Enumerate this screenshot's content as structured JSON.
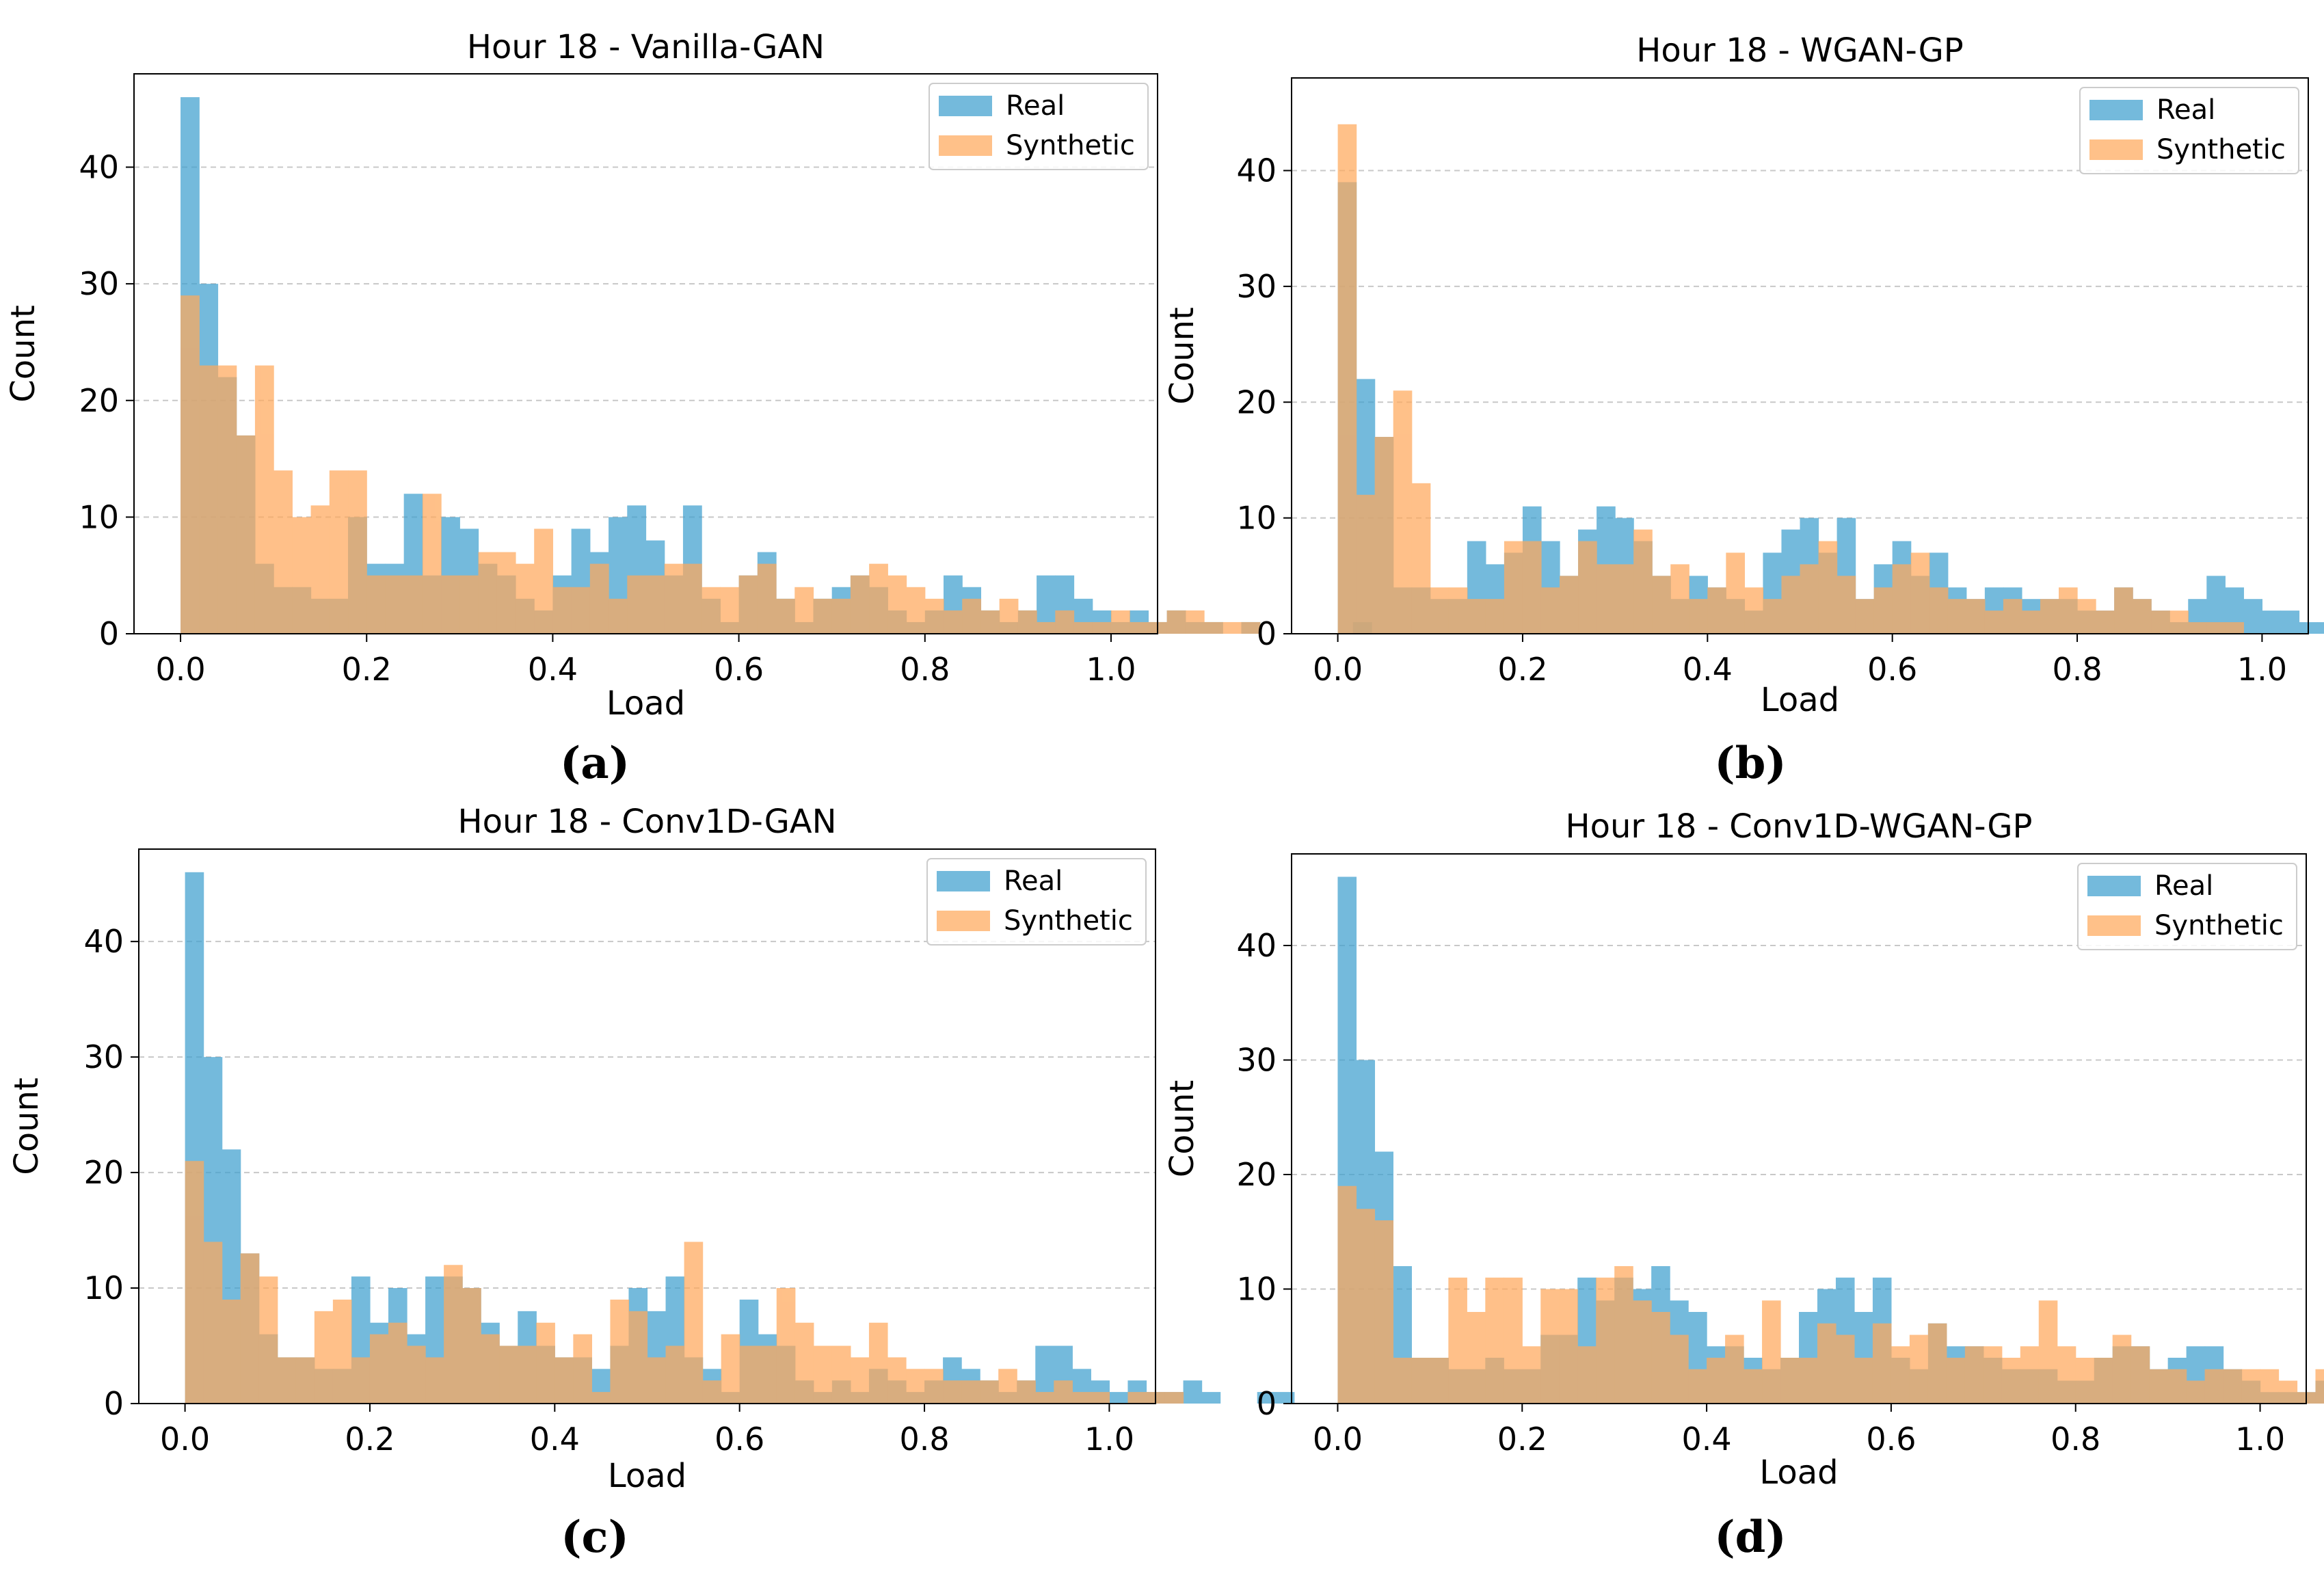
{
  "chart_data": [
    {
      "type": "bar",
      "title": "Hour 18 - Vanilla-GAN",
      "caption": "(a)",
      "xlabel": "Load",
      "ylabel": "Count",
      "xlim": [
        -0.05,
        1.05
      ],
      "ylim": [
        0,
        48
      ],
      "xticks": [
        "0.0",
        "0.2",
        "0.4",
        "0.6",
        "0.8",
        "1.0"
      ],
      "yticks": [
        "0",
        "10",
        "20",
        "30",
        "40"
      ],
      "grid": "y-dashed",
      "legend_position": "top-right",
      "bin_start": 0.0,
      "bin_width": 0.02,
      "series": [
        {
          "name": "Real",
          "color": "#3fa0cf",
          "values": [
            46,
            30,
            22,
            17,
            6,
            4,
            4,
            3,
            3,
            10,
            6,
            6,
            12,
            5,
            10,
            9,
            6,
            5,
            3,
            2,
            5,
            9,
            7,
            10,
            11,
            8,
            5,
            11,
            3,
            1,
            5,
            7,
            3,
            1,
            3,
            4,
            5,
            4,
            2,
            1,
            2,
            5,
            4,
            2,
            1,
            2,
            5,
            5,
            3,
            2,
            1,
            2,
            1,
            2,
            1,
            1,
            0,
            1,
            0,
            0,
            0,
            0,
            0,
            1
          ]
        },
        {
          "name": "Synthetic",
          "color": "#ffa95c",
          "values": [
            29,
            23,
            23,
            17,
            23,
            14,
            10,
            11,
            14,
            14,
            5,
            5,
            5,
            12,
            5,
            5,
            7,
            7,
            6,
            9,
            4,
            4,
            6,
            3,
            5,
            5,
            6,
            6,
            4,
            4,
            5,
            6,
            3,
            4,
            3,
            3,
            5,
            6,
            5,
            4,
            3,
            2,
            3,
            2,
            3,
            2,
            1,
            2,
            1,
            1,
            2,
            1,
            1,
            2,
            2,
            1,
            1,
            1,
            0,
            0,
            0,
            0,
            0,
            0
          ]
        }
      ]
    },
    {
      "type": "bar",
      "title": "Hour 18 - WGAN-GP",
      "caption": "(b)",
      "xlabel": "Load",
      "ylabel": "Count",
      "xlim": [
        -0.05,
        1.05
      ],
      "ylim": [
        0,
        48
      ],
      "xticks": [
        "0.0",
        "0.2",
        "0.4",
        "0.6",
        "0.8",
        "1.0"
      ],
      "yticks": [
        "0",
        "10",
        "20",
        "30",
        "40"
      ],
      "grid": "y-dashed",
      "legend_position": "top-right",
      "bin_start": 0.0,
      "bin_width": 0.02,
      "series": [
        {
          "name": "Real",
          "color": "#3fa0cf",
          "values": [
            39,
            22,
            17,
            4,
            4,
            3,
            3,
            8,
            6,
            7,
            11,
            8,
            5,
            9,
            11,
            10,
            8,
            5,
            3,
            5,
            4,
            3,
            2,
            7,
            9,
            10,
            7,
            10,
            3,
            6,
            8,
            5,
            7,
            4,
            3,
            4,
            4,
            3,
            3,
            3,
            2,
            2,
            4,
            3,
            2,
            1,
            3,
            5,
            4,
            3,
            2,
            2,
            1,
            1,
            2,
            1,
            1,
            0,
            0,
            1
          ]
        },
        {
          "name": "Synthetic",
          "color": "#ffa95c",
          "values": [
            44,
            12,
            17,
            21,
            13,
            4,
            4,
            3,
            3,
            8,
            8,
            4,
            5,
            8,
            6,
            6,
            9,
            5,
            6,
            3,
            4,
            7,
            4,
            3,
            5,
            6,
            8,
            5,
            3,
            4,
            6,
            7,
            4,
            3,
            3,
            2,
            3,
            2,
            3,
            4,
            3,
            2,
            4,
            3,
            2,
            2,
            1,
            1,
            1,
            0,
            0,
            0,
            0,
            0,
            0,
            0,
            0,
            0,
            0,
            0
          ]
        }
      ]
    },
    {
      "type": "bar",
      "title": "Hour 18 - Conv1D-GAN",
      "caption": "(c)",
      "xlabel": "Load",
      "ylabel": "Count",
      "xlim": [
        -0.05,
        1.05
      ],
      "ylim": [
        0,
        48
      ],
      "xticks": [
        "0.0",
        "0.2",
        "0.4",
        "0.6",
        "0.8",
        "1.0"
      ],
      "yticks": [
        "0",
        "10",
        "20",
        "30",
        "40"
      ],
      "grid": "y-dashed",
      "legend_position": "top-right",
      "bin_start": 0.0,
      "bin_width": 0.02,
      "series": [
        {
          "name": "Real",
          "color": "#3fa0cf",
          "values": [
            46,
            30,
            22,
            13,
            6,
            4,
            4,
            3,
            3,
            11,
            7,
            10,
            6,
            11,
            11,
            10,
            7,
            5,
            8,
            5,
            4,
            4,
            3,
            5,
            10,
            8,
            11,
            4,
            3,
            1,
            9,
            6,
            5,
            2,
            1,
            2,
            1,
            3,
            2,
            1,
            2,
            4,
            3,
            2,
            1,
            2,
            5,
            5,
            3,
            2,
            1,
            2,
            1,
            1,
            2,
            1,
            0,
            0,
            1,
            1
          ]
        },
        {
          "name": "Synthetic",
          "color": "#ffa95c",
          "values": [
            21,
            14,
            9,
            13,
            11,
            4,
            4,
            8,
            9,
            4,
            6,
            7,
            5,
            4,
            12,
            10,
            6,
            5,
            5,
            7,
            4,
            6,
            1,
            9,
            8,
            4,
            5,
            14,
            2,
            6,
            5,
            5,
            10,
            7,
            5,
            5,
            4,
            7,
            4,
            3,
            3,
            2,
            2,
            2,
            3,
            2,
            1,
            2,
            1,
            1,
            0,
            1,
            1,
            1,
            0,
            0,
            0,
            0,
            0,
            0
          ]
        }
      ]
    },
    {
      "type": "bar",
      "title": "Hour 18 - Conv1D-WGAN-GP",
      "caption": "(d)",
      "xlabel": "Load",
      "ylabel": "Count",
      "xlim": [
        -0.05,
        1.05
      ],
      "ylim": [
        0,
        48
      ],
      "xticks": [
        "0.0",
        "0.2",
        "0.4",
        "0.6",
        "0.8",
        "1.0"
      ],
      "yticks": [
        "0",
        "10",
        "20",
        "30",
        "40"
      ],
      "grid": "y-dashed",
      "legend_position": "top-right",
      "bin_start": 0.0,
      "bin_width": 0.02,
      "series": [
        {
          "name": "Real",
          "color": "#3fa0cf",
          "values": [
            46,
            30,
            22,
            12,
            4,
            4,
            3,
            3,
            4,
            3,
            3,
            6,
            6,
            11,
            9,
            11,
            10,
            12,
            9,
            8,
            5,
            5,
            4,
            3,
            4,
            8,
            10,
            11,
            8,
            11,
            4,
            3,
            7,
            5,
            5,
            4,
            3,
            3,
            3,
            2,
            2,
            4,
            5,
            5,
            3,
            4,
            5,
            5,
            3,
            2,
            1,
            1,
            1,
            2,
            2,
            1,
            0,
            0,
            0,
            0
          ]
        },
        {
          "name": "Synthetic",
          "color": "#ffa95c",
          "values": [
            19,
            17,
            16,
            4,
            4,
            4,
            11,
            8,
            11,
            11,
            5,
            10,
            10,
            5,
            11,
            12,
            9,
            8,
            6,
            3,
            4,
            6,
            3,
            9,
            4,
            4,
            7,
            6,
            4,
            7,
            5,
            6,
            7,
            4,
            5,
            5,
            4,
            5,
            9,
            5,
            4,
            4,
            6,
            5,
            3,
            3,
            2,
            3,
            3,
            3,
            3,
            2,
            1,
            3,
            1,
            1,
            2,
            1,
            2,
            0
          ]
        }
      ]
    }
  ]
}
